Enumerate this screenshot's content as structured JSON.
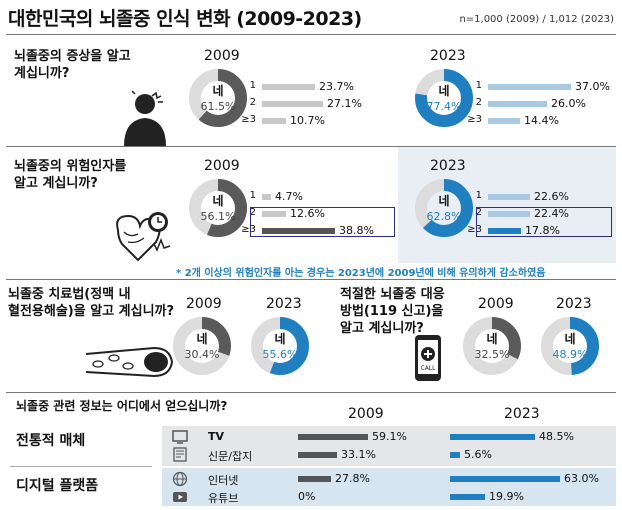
{
  "title": "대한민국의 뇌졸중 인식 변화 (2009-2023)",
  "sample_note": "n=1,000 (2009) / 1,012 (2023)",
  "colors": {
    "gray": "#5a5a5a",
    "blue": "#1f7fc0",
    "light_gray": "#c8c8c8",
    "light_blue": "#a9c9e2",
    "panel": "#e9eef4"
  },
  "footnote": "* 2개 이상의 위험인자를 아는 경우는 2023년에 2009년에 비해 유의하게 감소하였음",
  "sections": {
    "symptoms": {
      "question": [
        "뇌졸중의 증상을 알고",
        "계십니까?"
      ],
      "year_2009": "2009",
      "year_2023": "2023",
      "donut_2009": {
        "label": "네",
        "pct_text": "61.5%",
        "value": 61.5
      },
      "donut_2023": {
        "label": "네",
        "pct_text": "77.4%",
        "value": 77.4
      },
      "bars_2009": [
        {
          "label": "1",
          "text": "23.7%",
          "value": 23.7
        },
        {
          "label": "2",
          "text": "27.1%",
          "value": 27.1
        },
        {
          "label": "≥3",
          "text": "10.7%",
          "value": 10.7
        }
      ],
      "bars_2023": [
        {
          "label": "1",
          "text": "37.0%",
          "value": 37.0
        },
        {
          "label": "2",
          "text": "26.0%",
          "value": 26.0
        },
        {
          "label": "≥3",
          "text": "14.4%",
          "value": 14.4
        }
      ]
    },
    "risk": {
      "question": [
        "뇌졸중의 위험인자를",
        "알고 계십니까?"
      ],
      "year_2009": "2009",
      "year_2023": "2023",
      "donut_2009": {
        "label": "네",
        "pct_text": "56.1%",
        "value": 56.1
      },
      "donut_2023": {
        "label": "네",
        "pct_text": "62.8%",
        "value": 62.8
      },
      "bars_2009": [
        {
          "label": "1",
          "text": "4.7%",
          "value": 4.7
        },
        {
          "label": "2",
          "text": "12.6%",
          "value": 12.6
        },
        {
          "label": "≥3",
          "text": "38.8%",
          "value": 38.8
        }
      ],
      "bars_2023": [
        {
          "label": "1",
          "text": "22.6%",
          "value": 22.6
        },
        {
          "label": "2",
          "text": "22.4%",
          "value": 22.4
        },
        {
          "label": "≥3",
          "text": "17.8%",
          "value": 17.8
        }
      ]
    },
    "treatment": {
      "question": [
        "뇌졸중 치료법(정맥 내",
        "혈전용해술)을 알고 계십니까?"
      ],
      "year_2009": "2009",
      "year_2023": "2023",
      "donut_2009": {
        "label": "네",
        "pct_text": "30.4%",
        "value": 30.4
      },
      "donut_2023": {
        "label": "네",
        "pct_text": "55.6%",
        "value": 55.6
      }
    },
    "response": {
      "question": [
        "적절한 뇌졸중 대응",
        "방법(119 신고)을",
        "알고 계십니까?"
      ],
      "year_2009": "2009",
      "year_2023": "2023",
      "phone_text": "CALL",
      "donut_2009": {
        "label": "네",
        "pct_text": "32.5%",
        "value": 32.5
      },
      "donut_2023": {
        "label": "네",
        "pct_text": "48.9%",
        "value": 48.9
      }
    },
    "sources": {
      "question": "뇌졸중 관련 정보는 어디에서 얻으십니까?",
      "year_2009": "2009",
      "year_2023": "2023",
      "group_traditional": "전통적 매체",
      "group_digital": "디지털 플랫폼",
      "rows": [
        {
          "label": "TV",
          "icon": "tv-icon",
          "v2009": 59.1,
          "t2009": "59.1%",
          "v2023": 48.5,
          "t2023": "48.5%"
        },
        {
          "label": "신문/잡지",
          "icon": "newspaper-icon",
          "v2009": 33.1,
          "t2009": "33.1%",
          "v2023": 5.6,
          "t2023": "5.6%"
        },
        {
          "label": "인터넷",
          "icon": "globe-icon",
          "v2009": 27.8,
          "t2009": "27.8%",
          "v2023": 63.0,
          "t2023": "63.0%"
        },
        {
          "label": "유튜브",
          "icon": "youtube-icon",
          "v2009": 0,
          "t2009": "0%",
          "v2023": 19.9,
          "t2023": "19.9%"
        }
      ]
    }
  },
  "chart_data": [
    {
      "type": "pie",
      "title": "뇌졸중의 증상을 알고 계십니까?",
      "series": [
        {
          "name": "2009",
          "values": [
            61.5
          ]
        },
        {
          "name": "2023",
          "values": [
            77.4
          ]
        }
      ],
      "categories": [
        "네"
      ]
    },
    {
      "type": "bar",
      "title": "뇌졸중의 증상을 알고 계십니까?",
      "categories": [
        "1",
        "2",
        "≥3"
      ],
      "series": [
        {
          "name": "2009",
          "values": [
            23.7,
            27.1,
            10.7
          ]
        },
        {
          "name": "2023",
          "values": [
            37.0,
            26.0,
            14.4
          ]
        }
      ]
    },
    {
      "type": "pie",
      "title": "뇌졸중의 위험인자를 알고 계십니까?",
      "series": [
        {
          "name": "2009",
          "values": [
            56.1
          ]
        },
        {
          "name": "2023",
          "values": [
            62.8
          ]
        }
      ],
      "categories": [
        "네"
      ]
    },
    {
      "type": "bar",
      "title": "뇌졸중의 위험인자를 알고 계십니까?",
      "categories": [
        "1",
        "2",
        "≥3"
      ],
      "series": [
        {
          "name": "2009",
          "values": [
            4.7,
            12.6,
            38.8
          ]
        },
        {
          "name": "2023",
          "values": [
            22.6,
            22.4,
            17.8
          ]
        }
      ]
    },
    {
      "type": "pie",
      "title": "뇌졸중 치료법(정맥 내 혈전용해술)을 알고 계십니까?",
      "series": [
        {
          "name": "2009",
          "values": [
            30.4
          ]
        },
        {
          "name": "2023",
          "values": [
            55.6
          ]
        }
      ],
      "categories": [
        "네"
      ]
    },
    {
      "type": "pie",
      "title": "적절한 뇌졸중 대응 방법(119 신고)을 알고 계십니까?",
      "series": [
        {
          "name": "2009",
          "values": [
            32.5
          ]
        },
        {
          "name": "2023",
          "values": [
            48.9
          ]
        }
      ],
      "categories": [
        "네"
      ]
    },
    {
      "type": "bar",
      "title": "뇌졸중 관련 정보는 어디에서 얻으십니까?",
      "categories": [
        "TV",
        "신문/잡지",
        "인터넷",
        "유튜브"
      ],
      "series": [
        {
          "name": "2009",
          "values": [
            59.1,
            33.1,
            27.8,
            0
          ]
        },
        {
          "name": "2023",
          "values": [
            48.5,
            5.6,
            63.0,
            19.9
          ]
        }
      ]
    }
  ]
}
